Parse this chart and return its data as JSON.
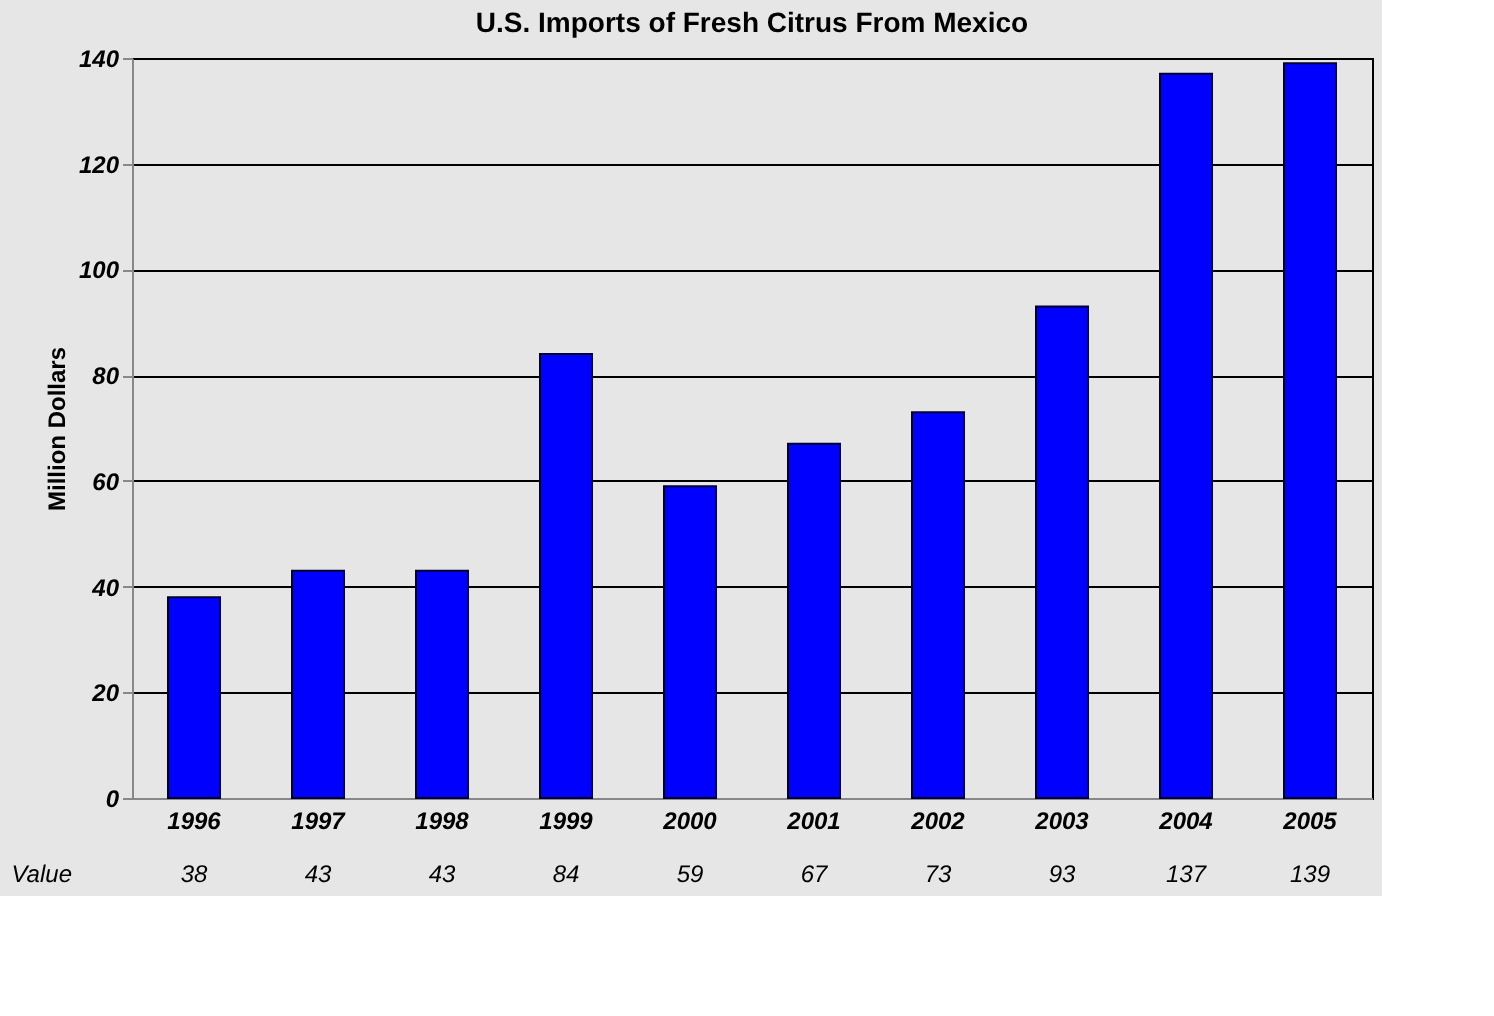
{
  "chart_data": {
    "type": "bar",
    "title": "U.S. Imports of Fresh Citrus From Mexico",
    "ylabel": "Million Dollars",
    "categories": [
      "1996",
      "1997",
      "1998",
      "1999",
      "2000",
      "2001",
      "2002",
      "2003",
      "2004",
      "2005"
    ],
    "values": [
      38,
      43,
      43,
      84,
      59,
      67,
      73,
      93,
      137,
      139
    ],
    "color": "#0000ff",
    "ylim": [
      0,
      140
    ],
    "yticks": [
      0,
      20,
      40,
      60,
      80,
      100,
      120,
      140
    ],
    "grid": "y",
    "data_labels": true,
    "annotations": [
      "Value"
    ]
  }
}
